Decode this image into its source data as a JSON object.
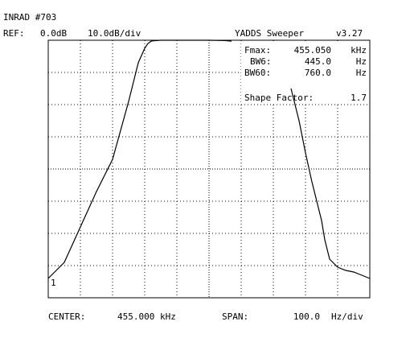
{
  "header": {
    "title": "INRAD #703",
    "ref_label": "REF:",
    "ref_value": "0.0dB",
    "scale": "10.0dB/div",
    "app_name": "YADDS Sweeper",
    "version": "v3.27"
  },
  "readout": {
    "fmax_label": "Fmax:",
    "fmax_value": "455.050",
    "fmax_unit": "kHz",
    "bw6_label": "BW6:",
    "bw6_value": "445.0",
    "bw6_unit": "Hz",
    "bw60_label": "BW60:",
    "bw60_value": "760.0",
    "bw60_unit": "Hz",
    "shape_label": "Shape Factor:",
    "shape_value": "1.7"
  },
  "footer": {
    "center_label": "CENTER:",
    "center_value": "455.000 kHz",
    "span_label": "SPAN:",
    "span_value": "100.0",
    "span_unit": "Hz/div"
  },
  "marker": "1",
  "chart_data": {
    "type": "line",
    "xlabel": "",
    "ylabel": "",
    "x_unit": "Hz from center",
    "y_unit": "dB",
    "xlim": [
      -500,
      500
    ],
    "ylim": [
      -80,
      0
    ],
    "grid": true,
    "x_divisions": 10,
    "y_divisions": 8,
    "series": [
      {
        "x": [
          -500,
          -475,
          -450,
          -400,
          -350,
          -300,
          -250,
          -220,
          -200,
          -190,
          -180,
          -175,
          -150,
          -100,
          -50,
          0,
          50,
          60,
          70
        ],
        "y": [
          -74,
          -71.5,
          -69,
          -58,
          -47,
          -37,
          -19,
          -7,
          -2.5,
          -1,
          -0.3,
          -0.2,
          0,
          0,
          0,
          0,
          -0.1,
          -0.2,
          -0.3
        ]
      },
      {
        "x": [
          255,
          260,
          280,
          300,
          320,
          350,
          360,
          375,
          400,
          425,
          450,
          475,
          500
        ],
        "y": [
          -15,
          -17,
          -25,
          -35,
          -44,
          -56,
          -62,
          -68,
          -70.5,
          -71.5,
          -72,
          -73,
          -74
        ]
      }
    ]
  }
}
